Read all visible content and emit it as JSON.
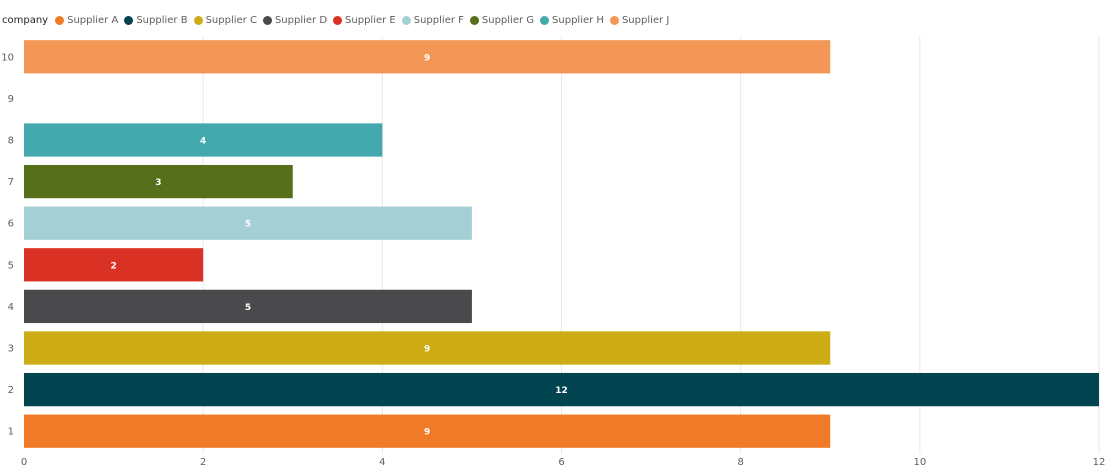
{
  "chart_data": {
    "type": "bar",
    "orientation": "horizontal",
    "legend": {
      "title": "company",
      "position": "top-left",
      "entries": [
        {
          "name": "Supplier A",
          "color": "#F07A27"
        },
        {
          "name": "Supplier B",
          "color": "#02444F"
        },
        {
          "name": "Supplier C",
          "color": "#CCAB14"
        },
        {
          "name": "Supplier D",
          "color": "#4A4A4C"
        },
        {
          "name": "Supplier E",
          "color": "#D93124"
        },
        {
          "name": "Supplier F",
          "color": "#A4CFD5"
        },
        {
          "name": "Supplier G",
          "color": "#566F1A"
        },
        {
          "name": "Supplier H",
          "color": "#44A9AE"
        },
        {
          "name": "Supplier J",
          "color": "#F39756"
        }
      ]
    },
    "categories": [
      "1",
      "2",
      "3",
      "4",
      "5",
      "6",
      "7",
      "8",
      "9",
      "10"
    ],
    "series": [
      {
        "name": "Supplier A",
        "category": "1",
        "value": 9
      },
      {
        "name": "Supplier B",
        "category": "2",
        "value": 12
      },
      {
        "name": "Supplier C",
        "category": "3",
        "value": 9
      },
      {
        "name": "Supplier D",
        "category": "4",
        "value": 5
      },
      {
        "name": "Supplier E",
        "category": "5",
        "value": 2
      },
      {
        "name": "Supplier F",
        "category": "6",
        "value": 5
      },
      {
        "name": "Supplier G",
        "category": "7",
        "value": 3
      },
      {
        "name": "Supplier H",
        "category": "8",
        "value": 4
      },
      {
        "name": "Supplier J",
        "category": "10",
        "value": 9
      }
    ],
    "x_ticks": [
      0,
      2,
      4,
      6,
      8,
      10,
      12
    ],
    "xlim": [
      0,
      12
    ],
    "grid": true,
    "data_labels": true
  }
}
